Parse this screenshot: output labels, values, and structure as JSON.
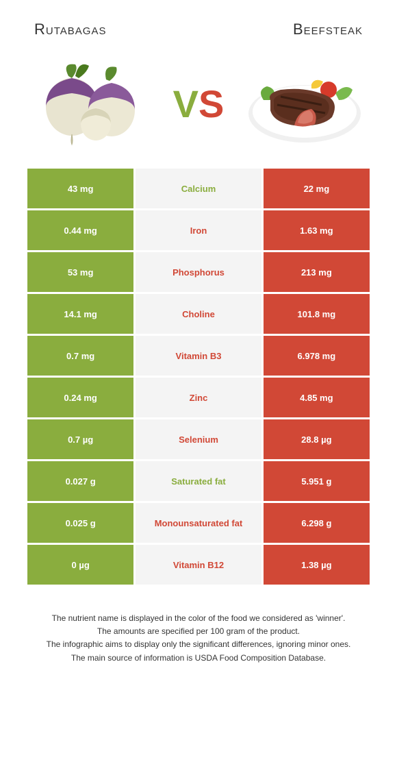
{
  "colors": {
    "left": "#8aad3e",
    "right": "#d14836",
    "text": "#333333",
    "mid_bg": "#f4f4f4"
  },
  "header": {
    "left_title": "Rutabagas",
    "right_title": "Beefsteak",
    "vs_v": "V",
    "vs_s": "S"
  },
  "rows": [
    {
      "left": "43 mg",
      "label": "Calcium",
      "right": "22 mg",
      "winner": "left"
    },
    {
      "left": "0.44 mg",
      "label": "Iron",
      "right": "1.63 mg",
      "winner": "right"
    },
    {
      "left": "53 mg",
      "label": "Phosphorus",
      "right": "213 mg",
      "winner": "right"
    },
    {
      "left": "14.1 mg",
      "label": "Choline",
      "right": "101.8 mg",
      "winner": "right"
    },
    {
      "left": "0.7 mg",
      "label": "Vitamin B3",
      "right": "6.978 mg",
      "winner": "right"
    },
    {
      "left": "0.24 mg",
      "label": "Zinc",
      "right": "4.85 mg",
      "winner": "right"
    },
    {
      "left": "0.7 µg",
      "label": "Selenium",
      "right": "28.8 µg",
      "winner": "right"
    },
    {
      "left": "0.027 g",
      "label": "Saturated fat",
      "right": "5.951 g",
      "winner": "left"
    },
    {
      "left": "0.025 g",
      "label": "Monounsaturated fat",
      "right": "6.298 g",
      "winner": "right"
    },
    {
      "left": "0 µg",
      "label": "Vitamin B12",
      "right": "1.38 µg",
      "winner": "right"
    }
  ],
  "footer": {
    "line1": "The nutrient name is displayed in the color of the food we considered as 'winner'.",
    "line2": "The amounts are specified per 100 gram of the product.",
    "line3": "The infographic aims to display only the significant differences, ignoring minor ones.",
    "line4": "The main source of information is USDA Food Composition Database."
  }
}
